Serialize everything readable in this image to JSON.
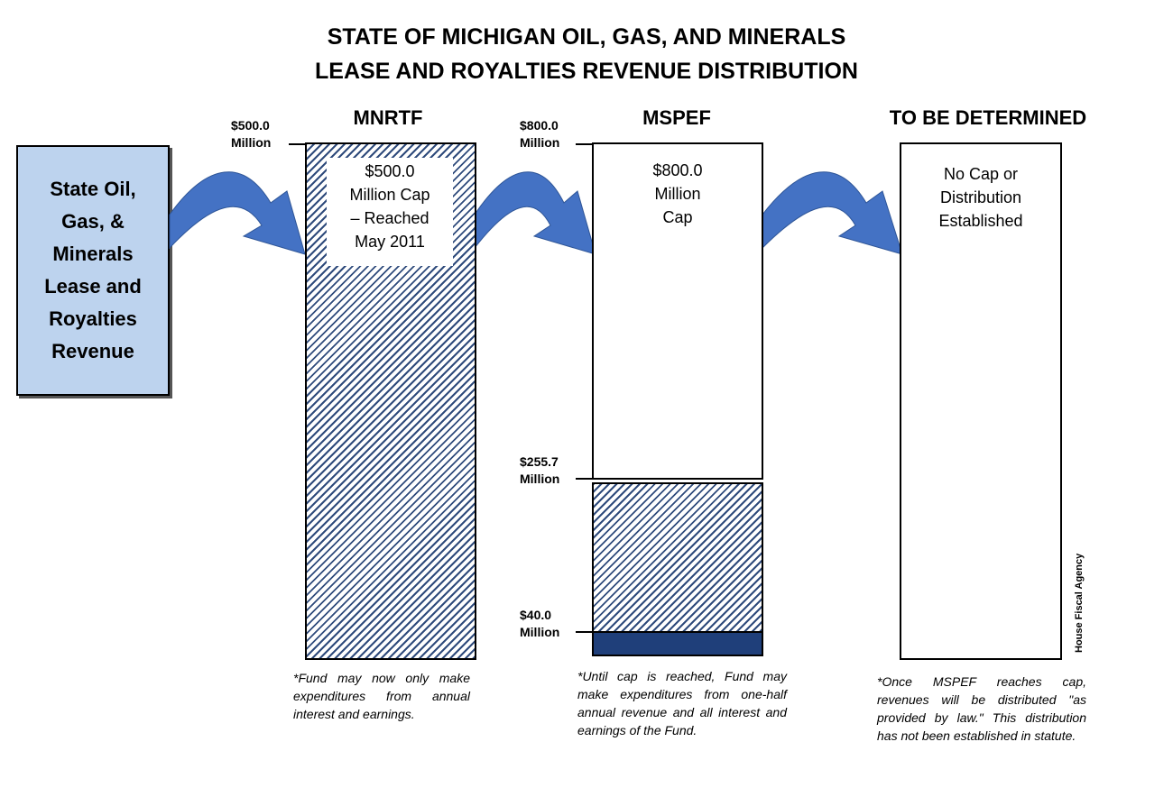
{
  "title": {
    "line1": "STATE OF MICHIGAN OIL, GAS, AND MINERALS",
    "line2": "LEASE AND ROYALTIES REVENUE DISTRIBUTION"
  },
  "source_box": {
    "lines": [
      "State Oil,",
      "Gas, &",
      "Minerals",
      "Lease and",
      "Royalties",
      "Revenue"
    ],
    "color": "#bdd3ee"
  },
  "arrow_color": "#4472c4",
  "hatch_color": "#2f4b7c",
  "solid_color": "#1f3f7a",
  "mnrtf": {
    "heading": "MNRTF",
    "axis_value": "$500.0",
    "axis_unit": "Million",
    "box_lines": [
      "$500.0",
      "Million  Cap",
      "– Reached",
      "May 2011"
    ],
    "note": "*Fund may now only make expenditures from annual interest and earnings."
  },
  "mspef": {
    "heading": "MSPEF",
    "top_value": "$800.0",
    "top_unit": "Million",
    "mid_value": "$255.7",
    "mid_unit": "Million",
    "low_value": "$40.0",
    "low_unit": "Million",
    "box_lines": [
      "$800.0",
      "Million",
      "Cap"
    ],
    "note": "*Until cap is reached, Fund may make expenditures from one-half annual revenue and all interest and earnings of the Fund."
  },
  "tbd": {
    "heading": "TO BE DETERMINED",
    "box_lines": [
      "No Cap or",
      "Distribution",
      "Established"
    ],
    "note": "*Once MSPEF reaches cap, revenues will be distributed \"as provided by law.\"  This distribution has not been established in statute."
  },
  "credit": "House Fiscal Agency"
}
